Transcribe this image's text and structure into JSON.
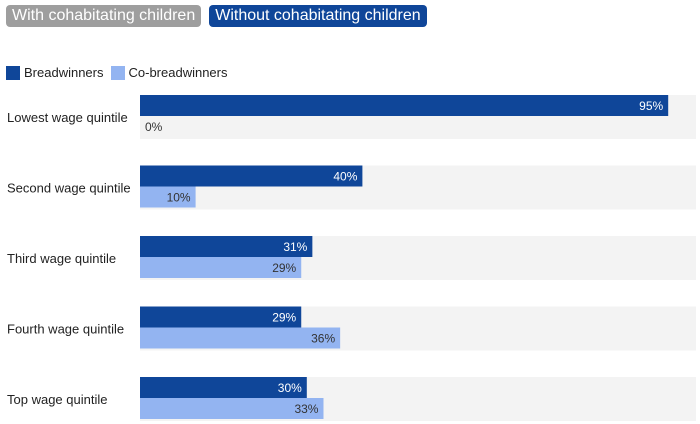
{
  "tabs": [
    {
      "label": "With cohabitating children",
      "active": false
    },
    {
      "label": "Without cohabitating children",
      "active": true
    }
  ],
  "colors": {
    "tab_active": "#0f4699",
    "tab_inactive": "#9e9e9e",
    "breadwinners": "#0f4699",
    "co_breadwinners": "#93b4f1",
    "row_background": "#f3f3f3"
  },
  "chart_data": {
    "type": "bar",
    "orientation": "horizontal",
    "categories": [
      "Lowest wage quintile",
      "Second wage quintile",
      "Third wage quintile",
      "Fourth wage quintile",
      "Top wage quintile"
    ],
    "series": [
      {
        "name": "Breadwinners",
        "values": [
          95,
          40,
          31,
          29,
          30
        ],
        "labels": [
          "95%",
          "40%",
          "31%",
          "29%",
          "30%"
        ]
      },
      {
        "name": "Co-breadwinners",
        "values": [
          0,
          10,
          29,
          36,
          33
        ],
        "labels": [
          "0%",
          "10%",
          "29%",
          "36%",
          "33%"
        ]
      }
    ],
    "xlim": [
      0,
      100
    ],
    "legend_position": "top-left",
    "grid": false
  }
}
